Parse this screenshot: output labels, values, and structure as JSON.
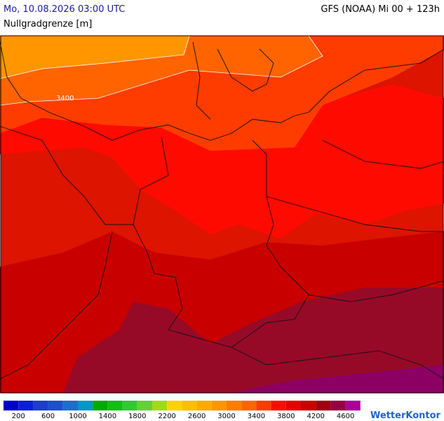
{
  "header": {
    "datetime": "Mo, 10.08.2026 03:00 UTC",
    "model": "GFS (NOAA) Mi 00 + 123h",
    "subtitle": "Nullgradgrenze [m]"
  },
  "map": {
    "contour_label": "3400"
  },
  "legend": {
    "labels": [
      "200",
      "600",
      "1000",
      "1400",
      "1800",
      "2200",
      "2600",
      "3000",
      "3400",
      "3800",
      "4200",
      "4600"
    ],
    "colors": [
      "#0000c8",
      "#0a1edc",
      "#1e3cd2",
      "#1e50c8",
      "#1e6ec8",
      "#0096c8",
      "#00aa00",
      "#14be14",
      "#32c832",
      "#64d232",
      "#a0dc14",
      "#ffd200",
      "#ffbe00",
      "#ffaa00",
      "#ff9600",
      "#ff7d00",
      "#ff6400",
      "#ff3c00",
      "#ff0a00",
      "#e60000",
      "#c80000",
      "#a00014",
      "#960046",
      "#aa0096"
    ]
  },
  "logo": "WetterKontor"
}
